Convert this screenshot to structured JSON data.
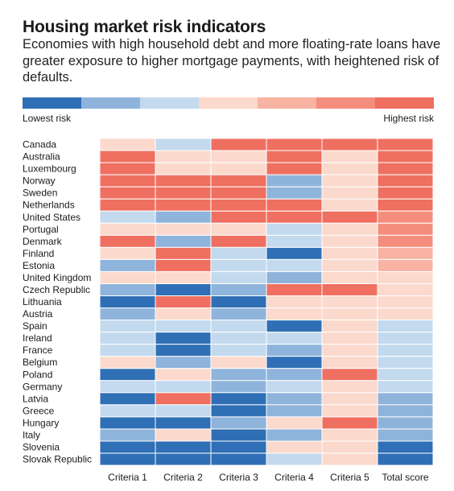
{
  "chart_data": {
    "type": "heatmap",
    "title": "Housing market risk indicators",
    "subtitle": "Economies with high household debt and more floating-rate loans have greater exposure to higher mortgage payments, with heightened risk of defaults.",
    "legend": {
      "low_label": "Lowest risk",
      "high_label": "Highest risk",
      "placement": "top"
    },
    "color_scale": [
      "#2f6fb5",
      "#8fb4dc",
      "#c3d9ee",
      "#fbd9cc",
      "#f8b3a3",
      "#f48d7c",
      "#ef6f60"
    ],
    "columns": [
      "Criteria 1",
      "Criteria 2",
      "Criteria 3",
      "Criteria 4",
      "Criteria 5",
      "Total score"
    ],
    "rows": [
      "Canada",
      "Australia",
      "Luxembourg",
      "Norway",
      "Sweden",
      "Netherlands",
      "United States",
      "Portugal",
      "Denmark",
      "Finland",
      "Estonia",
      "United Kingdom",
      "Czech Republic",
      "Lithuania",
      "Austria",
      "Spain",
      "Ireland",
      "France",
      "Belgium",
      "Poland",
      "Germany",
      "Latvia",
      "Greece",
      "Hungary",
      "Italy",
      "Slovenia",
      "Slovak Republic"
    ],
    "values": [
      [
        3,
        2,
        6,
        6,
        6,
        6
      ],
      [
        6,
        3,
        3,
        6,
        3,
        6
      ],
      [
        6,
        3,
        3,
        6,
        3,
        6
      ],
      [
        6,
        6,
        6,
        1,
        3,
        6
      ],
      [
        6,
        6,
        6,
        1,
        3,
        6
      ],
      [
        6,
        6,
        6,
        6,
        3,
        6
      ],
      [
        2,
        1,
        6,
        6,
        6,
        5
      ],
      [
        3,
        3,
        3,
        2,
        3,
        5
      ],
      [
        6,
        1,
        6,
        2,
        3,
        5
      ],
      [
        3,
        6,
        2,
        0,
        3,
        4
      ],
      [
        1,
        6,
        2,
        2,
        3,
        4
      ],
      [
        3,
        3,
        2,
        1,
        3,
        3
      ],
      [
        1,
        0,
        1,
        6,
        6,
        3
      ],
      [
        0,
        6,
        0,
        3,
        3,
        3
      ],
      [
        1,
        3,
        1,
        3,
        3,
        3
      ],
      [
        2,
        2,
        2,
        0,
        3,
        2
      ],
      [
        2,
        0,
        2,
        2,
        3,
        2
      ],
      [
        2,
        0,
        2,
        1,
        3,
        2
      ],
      [
        3,
        1,
        3,
        0,
        3,
        2
      ],
      [
        0,
        3,
        1,
        1,
        6,
        2
      ],
      [
        2,
        2,
        1,
        2,
        3,
        2
      ],
      [
        0,
        6,
        0,
        1,
        3,
        1
      ],
      [
        2,
        2,
        0,
        1,
        3,
        1
      ],
      [
        0,
        0,
        1,
        3,
        6,
        1
      ],
      [
        1,
        3,
        0,
        1,
        3,
        1
      ],
      [
        0,
        0,
        0,
        3,
        3,
        0
      ],
      [
        0,
        0,
        0,
        2,
        3,
        0
      ]
    ]
  }
}
